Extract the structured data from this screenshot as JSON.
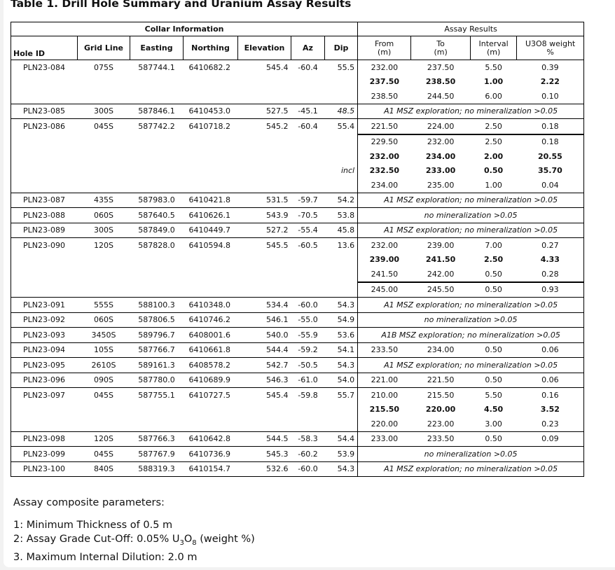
{
  "title": "Table 1. Drill Hole Summary and Uranium Assay Results",
  "headers": {
    "collar_group": "Collar Information",
    "assay_group": "Assay Results",
    "hole_id": "Hole ID",
    "grid_line": "Grid Line",
    "easting": "Easting",
    "northing": "Northing",
    "elevation": "Elevation",
    "az": "Az",
    "dip": "Dip",
    "from": "From (m)",
    "to": "To (m)",
    "interval": "Interval (m)",
    "u3o8": "U3O8 weight %"
  },
  "holes": [
    {
      "id": "PLN23-084",
      "grid": "075S",
      "easting": "587744.1",
      "northing": "6410682.2",
      "elevation": "545.4",
      "az": "-60.4",
      "dip": "55.5",
      "assays": [
        {
          "from": "232.00",
          "to": "237.50",
          "interval": "5.50",
          "u3o8": "0.39"
        },
        {
          "from": "237.50",
          "to": "238.50",
          "interval": "1.00",
          "u3o8": "2.22",
          "bold": true
        },
        {
          "from": "238.50",
          "to": "244.50",
          "interval": "6.00",
          "u3o8": "0.10"
        }
      ]
    },
    {
      "id": "PLN23-085",
      "grid": "300S",
      "easting": "587846.1",
      "northing": "6410453.0",
      "elevation": "527.5",
      "az": "-45.1",
      "dip": "48.5",
      "dip_italic": true,
      "assays": [
        {
          "note": "A1 MSZ exploration; no mineralization >0.05"
        }
      ]
    },
    {
      "id": "PLN23-086",
      "grid": "045S",
      "easting": "587742.2",
      "northing": "6410718.2",
      "elevation": "545.2",
      "az": "-60.4",
      "dip": "55.4",
      "assays": [
        {
          "from": "221.50",
          "to": "224.00",
          "interval": "2.50",
          "u3o8": "0.18"
        },
        {
          "from": "229.50",
          "to": "232.00",
          "interval": "2.50",
          "u3o8": "0.18",
          "group": true
        },
        {
          "from": "232.00",
          "to": "234.00",
          "interval": "2.00",
          "u3o8": "20.55",
          "bold": true
        },
        {
          "from": "232.50",
          "to": "233.00",
          "interval": "0.50",
          "u3o8": "35.70",
          "bold": true,
          "label": "incl"
        },
        {
          "from": "234.00",
          "to": "235.00",
          "interval": "1.00",
          "u3o8": "0.04"
        }
      ]
    },
    {
      "id": "PLN23-087",
      "grid": "435S",
      "easting": "587983.0",
      "northing": "6410421.8",
      "elevation": "531.5",
      "az": "-59.7",
      "dip": "54.2",
      "assays": [
        {
          "note": "A1 MSZ exploration; no mineralization >0.05"
        }
      ]
    },
    {
      "id": "PLN23-088",
      "grid": "060S",
      "easting": "587640.5",
      "northing": "6410626.1",
      "elevation": "543.9",
      "az": "-70.5",
      "dip": "53.8",
      "assays": [
        {
          "note": "no mineralization >0.05"
        }
      ]
    },
    {
      "id": "PLN23-089",
      "grid": "300S",
      "easting": "587849.0",
      "northing": "6410449.7",
      "elevation": "527.2",
      "az": "-55.4",
      "dip": "45.8",
      "assays": [
        {
          "note": "A1 MSZ exploration; no mineralization >0.05"
        }
      ]
    },
    {
      "id": "PLN23-090",
      "grid": "120S",
      "easting": "587828.0",
      "northing": "6410594.8",
      "elevation": "545.5",
      "az": "-60.5",
      "dip": "13.6",
      "assays": [
        {
          "from": "232.00",
          "to": "239.00",
          "interval": "7.00",
          "u3o8": "0.27"
        },
        {
          "from": "239.00",
          "to": "241.50",
          "interval": "2.50",
          "u3o8": "4.33",
          "bold": true
        },
        {
          "from": "241.50",
          "to": "242.00",
          "interval": "0.50",
          "u3o8": "0.28"
        },
        {
          "from": "245.00",
          "to": "245.50",
          "interval": "0.50",
          "u3o8": "0.93",
          "group": true
        }
      ]
    },
    {
      "id": "PLN23-091",
      "grid": "555S",
      "easting": "588100.3",
      "northing": "6410348.0",
      "elevation": "534.4",
      "az": "-60.0",
      "dip": "54.3",
      "assays": [
        {
          "note": "A1 MSZ exploration; no mineralization >0.05"
        }
      ]
    },
    {
      "id": "PLN23-092",
      "grid": "060S",
      "easting": "587806.5",
      "northing": "6410746.2",
      "elevation": "546.1",
      "az": "-55.0",
      "dip": "54.9",
      "assays": [
        {
          "note": "no mineralization >0.05"
        }
      ]
    },
    {
      "id": "PLN23-093",
      "grid": "3450S",
      "easting": "589796.7",
      "northing": "6408001.6",
      "elevation": "540.0",
      "az": "-55.9",
      "dip": "53.6",
      "assays": [
        {
          "note": "A1B MSZ exploration; no mineralization >0.05"
        }
      ]
    },
    {
      "id": "PLN23-094",
      "grid": "105S",
      "easting": "587766.7",
      "northing": "6410661.8",
      "elevation": "544.4",
      "az": "-59.2",
      "dip": "54.1",
      "assays": [
        {
          "from": "233.50",
          "to": "234.00",
          "interval": "0.50",
          "u3o8": "0.06"
        }
      ]
    },
    {
      "id": "PLN23-095",
      "grid": "2610S",
      "easting": "589161.3",
      "northing": "6408578.2",
      "elevation": "542.7",
      "az": "-50.5",
      "dip": "54.3",
      "assays": [
        {
          "note": "A1 MSZ exploration; no mineralization >0.05"
        }
      ]
    },
    {
      "id": "PLN23-096",
      "grid": "090S",
      "easting": "587780.0",
      "northing": "6410689.9",
      "elevation": "546.3",
      "az": "-61.0",
      "dip": "54.0",
      "assays": [
        {
          "from": "221.00",
          "to": "221.50",
          "interval": "0.50",
          "u3o8": "0.06"
        }
      ]
    },
    {
      "id": "PLN23-097",
      "grid": "045S",
      "easting": "587755.1",
      "northing": "6410727.5",
      "elevation": "545.4",
      "az": "-59.8",
      "dip": "55.7",
      "assays": [
        {
          "from": "210.00",
          "to": "215.50",
          "interval": "5.50",
          "u3o8": "0.16"
        },
        {
          "from": "215.50",
          "to": "220.00",
          "interval": "4.50",
          "u3o8": "3.52",
          "bold": true
        },
        {
          "from": "220.00",
          "to": "223.00",
          "interval": "3.00",
          "u3o8": "0.23"
        }
      ]
    },
    {
      "id": "PLN23-098",
      "grid": "120S",
      "easting": "587766.3",
      "northing": "6410642.8",
      "elevation": "544.5",
      "az": "-58.3",
      "dip": "54.4",
      "assays": [
        {
          "from": "233.00",
          "to": "233.50",
          "interval": "0.50",
          "u3o8": "0.09"
        }
      ]
    },
    {
      "id": "PLN23-099",
      "grid": "045S",
      "easting": "587767.9",
      "northing": "6410736.9",
      "elevation": "545.3",
      "az": "-60.2",
      "dip": "53.9",
      "assays": [
        {
          "note": "no mineralization >0.05"
        }
      ]
    },
    {
      "id": "PLN23-100",
      "grid": "840S",
      "easting": "588319.3",
      "northing": "6410154.7",
      "elevation": "532.6",
      "az": "-60.0",
      "dip": "54.3",
      "assays": [
        {
          "note": "A1 MSZ exploration; no mineralization >0.05"
        }
      ]
    }
  ],
  "footer": {
    "heading": "Assay composite parameters:",
    "item1": "1: Minimum Thickness of 0.5 m",
    "item2_pre": "2: Assay Grade Cut-Off: 0.05% U",
    "item2_sub1": "3",
    "item2_mid": "O",
    "item2_sub2": "8",
    "item2_post": " (weight %)",
    "item3": "3. Maximum Internal Dilution: 2.0 m"
  }
}
